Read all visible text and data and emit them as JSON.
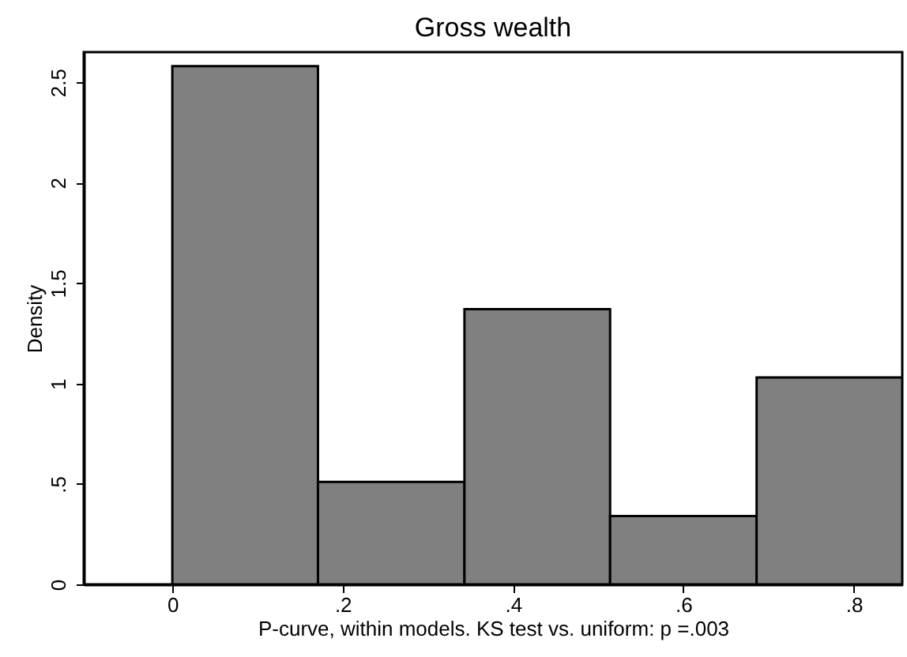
{
  "chart_data": {
    "type": "histogram",
    "title": "Gross wealth",
    "xlabel": "P-curve, within models. KS test vs. uniform: p =.003",
    "ylabel": "Density",
    "bins": [
      0,
      0.171,
      0.343,
      0.514,
      0.686,
      0.857
    ],
    "values": [
      2.58,
      0.51,
      1.37,
      0.34,
      1.03
    ],
    "color": "#808080",
    "xlim": [
      -0.104,
      0.857
    ],
    "xticks": [
      0,
      {
        "value": 0.2,
        "label": ".2"
      },
      {
        "value": 0.4,
        "label": ".4"
      },
      {
        "value": 0.6,
        "label": ".6"
      },
      {
        "value": 0.8,
        "label": ".8"
      }
    ],
    "ylim": [
      0,
      2.65
    ],
    "yticks": [
      0,
      {
        "value": 0.5,
        "label": ".5"
      },
      1,
      1.5,
      2,
      2.5
    ],
    "grid": false
  }
}
